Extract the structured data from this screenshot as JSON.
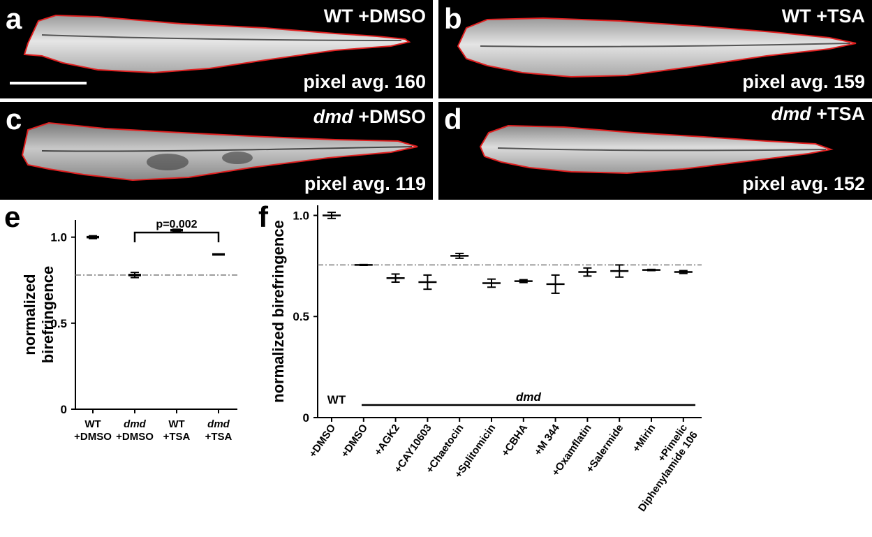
{
  "panels": [
    {
      "letter": "a",
      "genotype": "WT",
      "treatment": "+DMSO",
      "pixel_text": "pixel avg. 160"
    },
    {
      "letter": "b",
      "genotype": "WT",
      "treatment": "+TSA",
      "pixel_text": "pixel avg. 159"
    },
    {
      "letter": "c",
      "genotype": "dmd",
      "treatment": "+DMSO",
      "pixel_text": "pixel avg. 119"
    },
    {
      "letter": "d",
      "genotype": "dmd",
      "treatment": "+TSA",
      "pixel_text": "pixel avg. 152"
    }
  ],
  "colors": {
    "outline": "#e02020",
    "panel_bg": "#000000",
    "mark": "#000000",
    "refline": "#777777"
  },
  "chart_data": [
    {
      "panel": "e",
      "type": "scatter",
      "ylabel": "normalized birefringence",
      "ylim": [
        0,
        1.1
      ],
      "yticks": [
        "0",
        "0.5",
        "1.0"
      ],
      "categories": [
        {
          "genotype": "WT",
          "treatment": "+DMSO"
        },
        {
          "genotype": "dmd",
          "treatment": "+DMSO"
        },
        {
          "genotype": "WT",
          "treatment": "+TSA"
        },
        {
          "genotype": "dmd",
          "treatment": "+TSA"
        }
      ],
      "mean": [
        1.0,
        0.78,
        1.04,
        0.9
      ],
      "error": [
        0.008,
        0.015,
        0.006,
        0.003
      ],
      "reference_line": 0.78,
      "significance": {
        "from": 1,
        "to": 3,
        "label": "p=0.002"
      }
    },
    {
      "panel": "f",
      "type": "scatter",
      "ylabel": "normalized birefringence",
      "ylim": [
        0,
        1.05
      ],
      "yticks": [
        "0",
        "0.5",
        "1.0"
      ],
      "categories": [
        "+DMSO",
        "+DMSO",
        "+AGK2",
        "+CAY10603",
        "+Chaetocin",
        "+Splitomicin",
        "+CBHA",
        "+M 344",
        "+Oxamflatin",
        "+Salermide",
        "+Mirin",
        "+Pimelic Diphenylamide 106"
      ],
      "mean": [
        1.0,
        0.755,
        0.69,
        0.67,
        0.8,
        0.665,
        0.675,
        0.66,
        0.72,
        0.725,
        0.73,
        0.72
      ],
      "error": [
        0.015,
        0.002,
        0.02,
        0.035,
        0.012,
        0.02,
        0.007,
        0.045,
        0.02,
        0.03,
        0.003,
        0.007
      ],
      "reference_line": 0.755,
      "group_labels": {
        "wt": "WT",
        "mutant": "dmd"
      }
    }
  ]
}
